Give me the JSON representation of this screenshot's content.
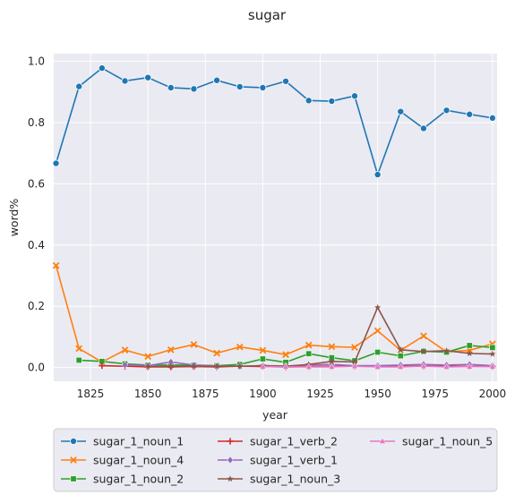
{
  "chart_data": {
    "type": "line",
    "title": "sugar",
    "xlabel": "year",
    "ylabel": "word%",
    "xlim": [
      1809,
      2002
    ],
    "ylim": [
      -0.045,
      1.025
    ],
    "xticks": [
      1825,
      1850,
      1875,
      1900,
      1925,
      1950,
      1975,
      2000
    ],
    "yticks": [
      0.0,
      0.2,
      0.4,
      0.6,
      0.8,
      1.0
    ],
    "xtick_labels": [
      "1825",
      "1850",
      "1875",
      "1900",
      "1925",
      "1950",
      "1975",
      "2000"
    ],
    "ytick_labels": [
      "0.0",
      "0.2",
      "0.4",
      "0.6",
      "0.8",
      "1.0"
    ],
    "grid": true,
    "legend_position": "bottom",
    "series": [
      {
        "name": "sugar_1_noun_1",
        "color": "#1f77b4",
        "marker": "circle",
        "x": [
          1810,
          1820,
          1830,
          1840,
          1850,
          1860,
          1870,
          1880,
          1890,
          1900,
          1910,
          1920,
          1930,
          1940,
          1950,
          1960,
          1970,
          1980,
          1990,
          2000
        ],
        "y": [
          0.667,
          0.918,
          0.978,
          0.936,
          0.947,
          0.914,
          0.91,
          0.938,
          0.917,
          0.914,
          0.935,
          0.872,
          0.87,
          0.887,
          0.63,
          0.836,
          0.781,
          0.84,
          0.827,
          0.815
        ]
      },
      {
        "name": "sugar_1_noun_4",
        "color": "#ff7f0e",
        "marker": "x",
        "x": [
          1810,
          1820,
          1830,
          1840,
          1850,
          1860,
          1870,
          1880,
          1890,
          1900,
          1910,
          1920,
          1930,
          1940,
          1950,
          1960,
          1970,
          1980,
          1990,
          2000
        ],
        "y": [
          0.333,
          0.062,
          0.018,
          0.057,
          0.036,
          0.058,
          0.075,
          0.047,
          0.067,
          0.056,
          0.042,
          0.073,
          0.068,
          0.066,
          0.12,
          0.056,
          0.103,
          0.051,
          0.056,
          0.077
        ]
      },
      {
        "name": "sugar_1_noun_2",
        "color": "#2ca02c",
        "marker": "square",
        "x": [
          1820,
          1830,
          1840,
          1850,
          1860,
          1870,
          1880,
          1890,
          1900,
          1910,
          1920,
          1930,
          1940,
          1950,
          1960,
          1970,
          1980,
          1990,
          2000
        ],
        "y": [
          0.024,
          0.02,
          0.012,
          0.008,
          0.008,
          0.008,
          0.006,
          0.01,
          0.028,
          0.017,
          0.045,
          0.032,
          0.022,
          0.05,
          0.038,
          0.053,
          0.05,
          0.072,
          0.065
        ]
      },
      {
        "name": "sugar_1_verb_2",
        "color": "#d62728",
        "marker": "plus",
        "x": [
          1830,
          1840,
          1850,
          1860,
          1870,
          1880,
          1890,
          1900,
          1910,
          1920,
          1930,
          1940,
          1950,
          1960,
          1970,
          1980,
          1990,
          2000
        ],
        "y": [
          0.006,
          0.004,
          0.002,
          0.002,
          0.003,
          0.002,
          0.004,
          0.003,
          0.002,
          0.003,
          0.004,
          0.004,
          0.003,
          0.004,
          0.005,
          0.004,
          0.004,
          0.003
        ]
      },
      {
        "name": "sugar_1_verb_1",
        "color": "#9467bd",
        "marker": "diamond",
        "x": [
          1840,
          1850,
          1860,
          1870,
          1880,
          1890,
          1900,
          1910,
          1920,
          1930,
          1940,
          1950,
          1960,
          1970,
          1980,
          1990,
          2000
        ],
        "y": [
          0.008,
          0.006,
          0.018,
          0.008,
          0.005,
          0.004,
          0.006,
          0.005,
          0.008,
          0.01,
          0.006,
          0.006,
          0.008,
          0.01,
          0.008,
          0.01,
          0.006
        ]
      },
      {
        "name": "sugar_1_noun_3",
        "color": "#8c564b",
        "marker": "star",
        "x": [
          1850,
          1860,
          1870,
          1880,
          1890,
          1900,
          1910,
          1920,
          1930,
          1940,
          1950,
          1960,
          1970,
          1980,
          1990,
          2000
        ],
        "y": [
          0.003,
          0.004,
          0.004,
          0.004,
          0.004,
          0.006,
          0.004,
          0.01,
          0.02,
          0.018,
          0.196,
          0.058,
          0.052,
          0.055,
          0.046,
          0.044
        ]
      },
      {
        "name": "sugar_1_noun_5",
        "color": "#e377c2",
        "marker": "triangle",
        "x": [
          1900,
          1910,
          1920,
          1930,
          1940,
          1950,
          1960,
          1970,
          1980,
          1990,
          2000
        ],
        "y": [
          0.003,
          0.002,
          0.002,
          0.002,
          0.004,
          0.002,
          0.002,
          0.004,
          0.002,
          0.003,
          0.003
        ]
      }
    ]
  }
}
